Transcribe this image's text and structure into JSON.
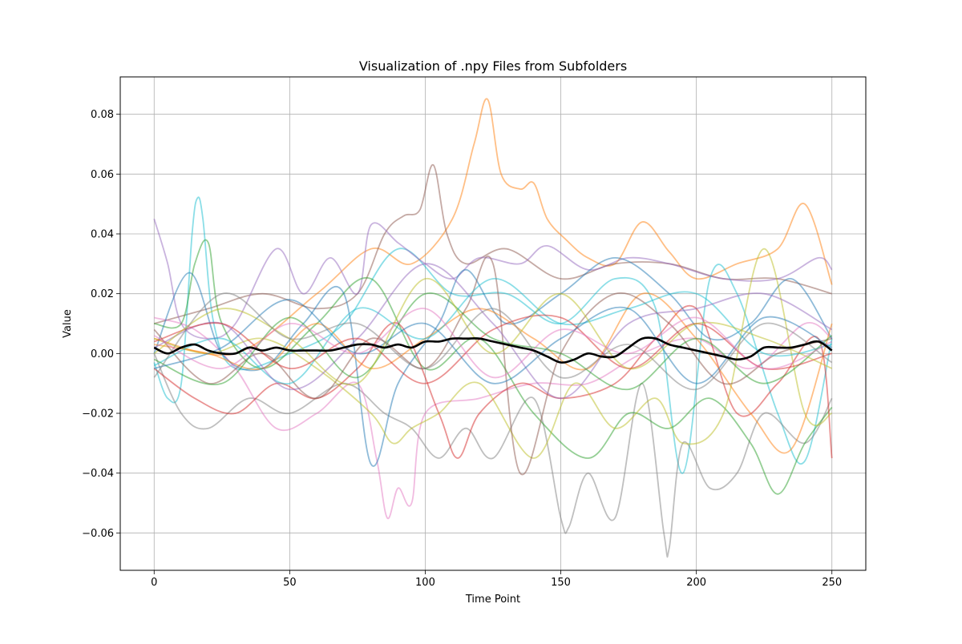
{
  "chart_data": {
    "type": "line",
    "title": "Visualization of .npy Files from Subfolders",
    "xlabel": "Time Point",
    "ylabel": "Value",
    "xlim": [
      -12.5,
      262.5
    ],
    "ylim": [
      -0.0725,
      0.0925
    ],
    "xticks": [
      0,
      50,
      100,
      150,
      200,
      250
    ],
    "xtick_labels": [
      "0",
      "50",
      "100",
      "150",
      "200",
      "250"
    ],
    "yticks": [
      -0.06,
      -0.04,
      -0.02,
      0.0,
      0.02,
      0.04,
      0.06,
      0.08
    ],
    "ytick_labels": [
      "−0.06",
      "−0.04",
      "−0.02",
      "0.00",
      "0.02",
      "0.04",
      "0.06",
      "0.08"
    ],
    "grid": true,
    "x_range": [
      0,
      250
    ],
    "series_note_colors": [
      "#1f77b4",
      "#ff7f0e",
      "#2ca02c",
      "#d62728",
      "#9467bd",
      "#8c564b",
      "#e377c2",
      "#7f7f7f",
      "#bcbd22",
      "#17becf"
    ],
    "series": [
      {
        "color": "#ff7f0e",
        "x": [
          0,
          30,
          60,
          80,
          95,
          110,
          118,
          123,
          128,
          135,
          140,
          145,
          152,
          160,
          170,
          180,
          190,
          200,
          215,
          230,
          240,
          250
        ],
        "y": [
          0.005,
          0.0,
          0.02,
          0.035,
          0.03,
          0.045,
          0.07,
          0.085,
          0.06,
          0.055,
          0.057,
          0.045,
          0.038,
          0.032,
          0.03,
          0.044,
          0.034,
          0.025,
          0.03,
          0.035,
          0.05,
          0.023
        ]
      },
      {
        "color": "#8c564b",
        "x": [
          0,
          20,
          40,
          60,
          75,
          85,
          92,
          98,
          103,
          108,
          115,
          130,
          150,
          170,
          190,
          210,
          230,
          250
        ],
        "y": [
          0.01,
          0.015,
          0.02,
          0.015,
          0.02,
          0.04,
          0.046,
          0.048,
          0.063,
          0.04,
          0.03,
          0.035,
          0.025,
          0.03,
          0.03,
          0.025,
          0.025,
          0.02
        ]
      },
      {
        "color": "#17becf",
        "x": [
          0,
          5,
          10,
          14,
          16,
          18,
          22,
          30,
          50,
          70,
          90,
          110,
          130,
          150,
          170,
          185,
          195,
          205,
          215,
          230,
          240,
          250
        ],
        "y": [
          -0.003,
          -0.015,
          -0.01,
          0.04,
          0.052,
          0.045,
          0.01,
          -0.005,
          0.0,
          0.01,
          0.035,
          0.02,
          0.02,
          0.01,
          0.025,
          0.015,
          -0.04,
          0.025,
          0.02,
          -0.02,
          -0.036,
          0.005
        ]
      },
      {
        "color": "#9467bd",
        "x": [
          0,
          5,
          10,
          20,
          30,
          45,
          55,
          65,
          75,
          80,
          90,
          100,
          110,
          120,
          135,
          145,
          160,
          175,
          190,
          210,
          230,
          245,
          250
        ],
        "y": [
          0.045,
          0.03,
          0.01,
          0.005,
          0.01,
          0.035,
          0.02,
          0.032,
          0.02,
          0.043,
          0.037,
          0.03,
          0.025,
          0.032,
          0.03,
          0.036,
          0.028,
          0.032,
          0.03,
          0.025,
          0.025,
          0.032,
          0.028
        ]
      },
      {
        "color": "#7f7f7f",
        "x": [
          0,
          10,
          20,
          35,
          50,
          70,
          85,
          95,
          105,
          115,
          125,
          140,
          150,
          153,
          160,
          170,
          180,
          188,
          190,
          195,
          205,
          215,
          225,
          240,
          250
        ],
        "y": [
          0.0,
          -0.02,
          -0.025,
          -0.015,
          -0.02,
          -0.01,
          -0.02,
          -0.025,
          -0.035,
          -0.025,
          -0.035,
          -0.015,
          -0.055,
          -0.058,
          -0.04,
          -0.055,
          -0.01,
          -0.06,
          -0.065,
          -0.03,
          -0.045,
          -0.04,
          -0.02,
          -0.03,
          -0.015
        ]
      },
      {
        "color": "#e377c2",
        "x": [
          0,
          15,
          30,
          45,
          60,
          75,
          82,
          86,
          90,
          95,
          100,
          120,
          140,
          160,
          180,
          200,
          220,
          240,
          250
        ],
        "y": [
          0.012,
          0.008,
          -0.005,
          -0.025,
          -0.02,
          -0.01,
          -0.035,
          -0.055,
          -0.045,
          -0.05,
          -0.02,
          -0.015,
          -0.01,
          -0.01,
          0.0,
          0.005,
          -0.005,
          0.01,
          0.005
        ]
      },
      {
        "color": "#2ca02c",
        "x": [
          0,
          10,
          15,
          20,
          25,
          40,
          60,
          80,
          100,
          120,
          140,
          160,
          175,
          190,
          205,
          220,
          230,
          240,
          250
        ],
        "y": [
          0.01,
          0.01,
          0.03,
          0.037,
          0.01,
          -0.005,
          0.01,
          0.025,
          -0.005,
          0.005,
          -0.02,
          -0.035,
          -0.02,
          -0.025,
          -0.015,
          -0.03,
          -0.047,
          -0.03,
          -0.018
        ]
      },
      {
        "color": "#d62728",
        "x": [
          0,
          15,
          30,
          45,
          60,
          75,
          90,
          105,
          112,
          120,
          135,
          150,
          170,
          185,
          200,
          215,
          230,
          245,
          250
        ],
        "y": [
          -0.005,
          -0.015,
          -0.02,
          -0.01,
          -0.015,
          -0.005,
          0.01,
          -0.02,
          -0.035,
          -0.02,
          -0.01,
          -0.015,
          -0.01,
          0.005,
          0.015,
          -0.02,
          -0.01,
          0.005,
          -0.035
        ]
      },
      {
        "color": "#1f77b4",
        "x": [
          0,
          13,
          25,
          40,
          55,
          70,
          80,
          90,
          105,
          115,
          130,
          150,
          170,
          190,
          205,
          220,
          235,
          250
        ],
        "y": [
          0.0,
          0.027,
          0.0,
          -0.005,
          0.01,
          0.02,
          -0.037,
          -0.01,
          0.01,
          0.028,
          0.01,
          0.02,
          0.032,
          0.02,
          0.005,
          0.01,
          0.025,
          0.005
        ]
      },
      {
        "color": "#bcbd22",
        "x": [
          0,
          20,
          40,
          60,
          80,
          88,
          95,
          105,
          120,
          140,
          155,
          170,
          185,
          195,
          210,
          225,
          240,
          250
        ],
        "y": [
          0.005,
          0.0,
          0.005,
          -0.005,
          -0.02,
          -0.03,
          -0.025,
          -0.02,
          -0.01,
          -0.035,
          -0.01,
          -0.025,
          -0.015,
          -0.03,
          -0.02,
          0.035,
          -0.02,
          -0.02
        ]
      },
      {
        "color": "#ff7f0e",
        "x": [
          0,
          20,
          40,
          60,
          80,
          100,
          120,
          140,
          160,
          180,
          200,
          220,
          235,
          250
        ],
        "y": [
          0.003,
          0.0,
          -0.005,
          0.01,
          -0.005,
          0.005,
          0.015,
          0.005,
          -0.005,
          0.02,
          0.005,
          -0.02,
          -0.032,
          0.01
        ]
      },
      {
        "color": "#8c564b",
        "x": [
          0,
          20,
          40,
          60,
          80,
          100,
          115,
          125,
          135,
          150,
          170,
          190,
          210,
          230,
          250
        ],
        "y": [
          0.008,
          -0.01,
          0.0,
          -0.015,
          0.005,
          -0.005,
          0.015,
          0.03,
          -0.04,
          0.0,
          0.02,
          0.01,
          -0.01,
          0.0,
          0.005
        ]
      },
      {
        "color": "#17becf",
        "x": [
          0,
          25,
          50,
          75,
          100,
          125,
          150,
          175,
          200,
          225,
          250
        ],
        "y": [
          -0.004,
          0.005,
          -0.01,
          0.015,
          0.005,
          0.025,
          0.01,
          0.015,
          0.02,
          0.0,
          0.003
        ]
      },
      {
        "color": "#9467bd",
        "x": [
          0,
          25,
          50,
          75,
          100,
          125,
          150,
          175,
          200,
          225,
          250
        ],
        "y": [
          0.002,
          0.01,
          -0.012,
          0.005,
          0.03,
          0.01,
          -0.015,
          0.01,
          0.015,
          0.02,
          0.008
        ]
      },
      {
        "color": "#2ca02c",
        "x": [
          0,
          25,
          50,
          75,
          100,
          125,
          150,
          175,
          200,
          225,
          250
        ],
        "y": [
          -0.002,
          -0.01,
          0.012,
          -0.008,
          0.02,
          0.005,
          0.0,
          -0.012,
          0.005,
          -0.01,
          0.006
        ]
      },
      {
        "color": "#d62728",
        "x": [
          0,
          25,
          50,
          75,
          100,
          125,
          150,
          175,
          200,
          225,
          250
        ],
        "y": [
          0.004,
          0.01,
          -0.005,
          0.005,
          -0.01,
          0.008,
          0.012,
          -0.005,
          0.01,
          -0.005,
          0.0
        ]
      },
      {
        "color": "#1f77b4",
        "x": [
          0,
          25,
          50,
          75,
          100,
          125,
          150,
          175,
          200,
          225,
          250
        ],
        "y": [
          -0.005,
          0.002,
          0.018,
          0.0,
          0.01,
          -0.01,
          0.005,
          0.015,
          -0.01,
          0.012,
          0.002
        ]
      },
      {
        "color": "#bcbd22",
        "x": [
          0,
          25,
          50,
          75,
          100,
          125,
          150,
          175,
          200,
          225,
          250
        ],
        "y": [
          0.0,
          0.015,
          0.005,
          -0.01,
          0.025,
          0.0,
          0.02,
          -0.005,
          0.01,
          0.005,
          -0.005
        ]
      },
      {
        "color": "#7f7f7f",
        "x": [
          0,
          25,
          50,
          75,
          100,
          125,
          150,
          175,
          200,
          225,
          250
        ],
        "y": [
          -0.008,
          0.02,
          0.005,
          0.01,
          -0.005,
          0.015,
          -0.008,
          0.003,
          -0.012,
          0.01,
          -0.003
        ]
      },
      {
        "color": "#e377c2",
        "x": [
          0,
          25,
          50,
          75,
          100,
          125,
          150,
          175,
          200,
          225,
          250
        ],
        "y": [
          0.006,
          -0.005,
          0.01,
          0.0,
          0.015,
          -0.008,
          0.008,
          0.0,
          0.012,
          -0.005,
          0.004
        ]
      }
    ],
    "mean_series": {
      "color": "#000000",
      "x": [
        0,
        5,
        10,
        15,
        20,
        25,
        30,
        35,
        40,
        45,
        50,
        55,
        60,
        65,
        70,
        75,
        80,
        85,
        90,
        95,
        100,
        105,
        110,
        115,
        120,
        125,
        130,
        135,
        140,
        145,
        150,
        155,
        160,
        165,
        170,
        175,
        180,
        185,
        190,
        195,
        200,
        205,
        210,
        215,
        220,
        225,
        230,
        235,
        240,
        245,
        250
      ],
      "y": [
        0.002,
        0.0,
        0.002,
        0.003,
        0.001,
        0.0,
        0.0,
        0.002,
        0.001,
        0.002,
        0.001,
        0.001,
        0.001,
        0.001,
        0.002,
        0.003,
        0.003,
        0.002,
        0.003,
        0.002,
        0.004,
        0.004,
        0.005,
        0.005,
        0.005,
        0.004,
        0.003,
        0.002,
        0.001,
        -0.001,
        -0.003,
        -0.002,
        0.0,
        -0.001,
        -0.001,
        0.002,
        0.005,
        0.005,
        0.003,
        0.002,
        0.001,
        0.0,
        -0.001,
        -0.002,
        -0.001,
        0.002,
        0.002,
        0.002,
        0.003,
        0.004,
        0.001
      ]
    }
  }
}
